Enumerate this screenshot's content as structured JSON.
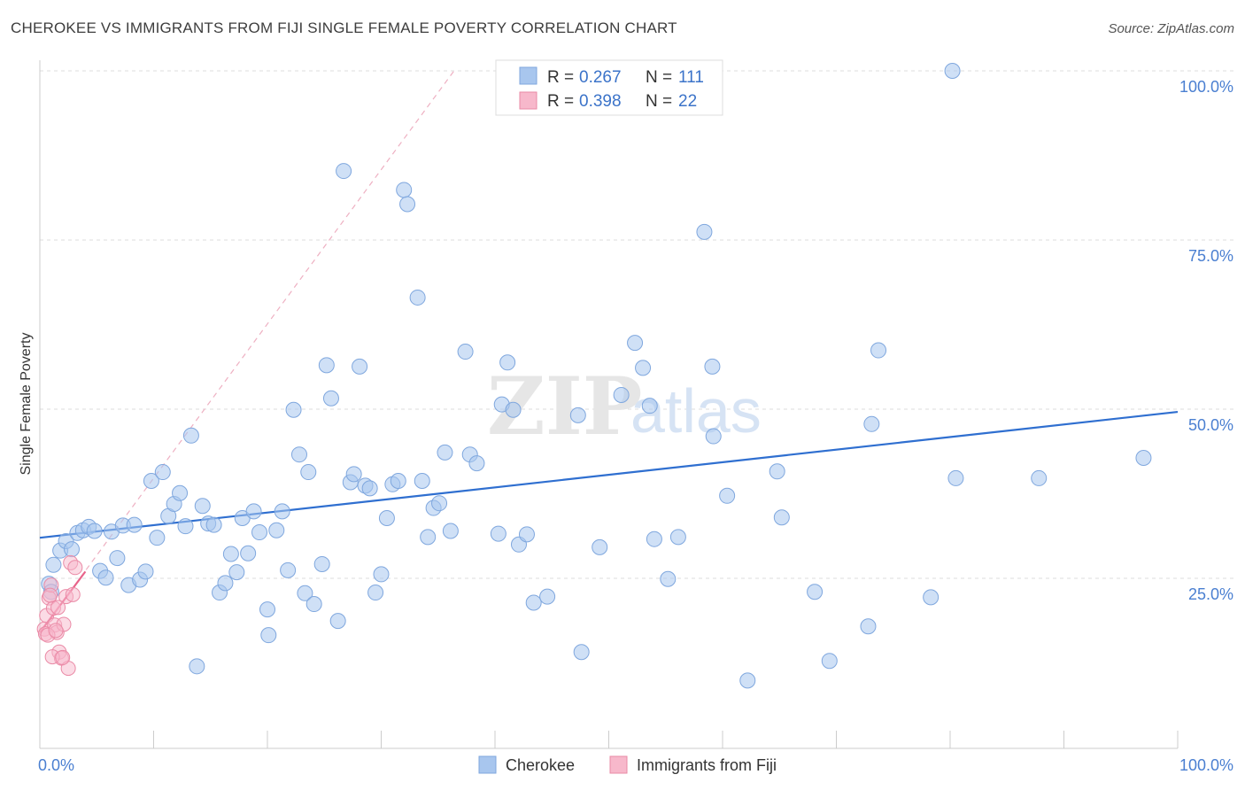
{
  "title": "CHEROKEE VS IMMIGRANTS FROM FIJI SINGLE FEMALE POVERTY CORRELATION CHART",
  "source": "Source: ZipAtlas.com",
  "watermark": {
    "left": "ZIP",
    "right": "atlas"
  },
  "legend": {
    "rows": [
      {
        "r_label": "R =",
        "r_value": "0.267",
        "n_label": "N =",
        "n_value": "111",
        "color": "#a8c6ee"
      },
      {
        "r_label": "R =",
        "r_value": "0.398",
        "n_label": "N =",
        "n_value": "22",
        "color": "#f7b8cb"
      }
    ]
  },
  "bottom_legend": [
    {
      "label": "Cherokee",
      "color": "#a8c6ee"
    },
    {
      "label": "Immigrants from Fiji",
      "color": "#f7b8cb"
    }
  ],
  "chart_data": {
    "type": "scatter",
    "title": "CHEROKEE VS IMMIGRANTS FROM FIJI SINGLE FEMALE POVERTY CORRELATION CHART",
    "xlabel": "",
    "ylabel": "Single Female Poverty",
    "xlim": [
      0,
      100
    ],
    "ylim": [
      0,
      100
    ],
    "x_tick_labels": [
      "0.0%",
      "100.0%"
    ],
    "y_ticks": [
      25,
      50,
      75,
      100
    ],
    "y_tick_labels": [
      "25.0%",
      "50.0%",
      "75.0%",
      "100.0%"
    ],
    "grid": true,
    "legend_position": "top-center",
    "series": [
      {
        "name": "Cherokee",
        "color": "#a8c6ee",
        "edge": "#7fa7de",
        "trend": {
          "x": [
            0,
            100
          ],
          "y": [
            31.0,
            49.6
          ],
          "color": "#2f6fd0"
        },
        "points": [
          [
            0.8,
            24.2
          ],
          [
            1.2,
            27.0
          ],
          [
            1.8,
            29.1
          ],
          [
            2.3,
            30.5
          ],
          [
            2.8,
            29.3
          ],
          [
            3.3,
            31.7
          ],
          [
            3.8,
            32.1
          ],
          [
            4.3,
            32.6
          ],
          [
            4.8,
            32.0
          ],
          [
            5.3,
            26.1
          ],
          [
            5.8,
            25.1
          ],
          [
            6.3,
            31.9
          ],
          [
            6.8,
            28.0
          ],
          [
            7.3,
            32.8
          ],
          [
            7.8,
            24.0
          ],
          [
            8.3,
            32.9
          ],
          [
            8.8,
            24.8
          ],
          [
            9.3,
            26.0
          ],
          [
            9.8,
            39.4
          ],
          [
            10.3,
            31.0
          ],
          [
            10.8,
            40.7
          ],
          [
            11.3,
            34.2
          ],
          [
            11.8,
            36.0
          ],
          [
            12.3,
            37.6
          ],
          [
            12.8,
            32.7
          ],
          [
            13.3,
            46.1
          ],
          [
            13.8,
            12.0
          ],
          [
            14.3,
            35.7
          ],
          [
            14.8,
            33.1
          ],
          [
            15.3,
            32.9
          ],
          [
            15.8,
            22.9
          ],
          [
            16.3,
            24.3
          ],
          [
            16.8,
            28.6
          ],
          [
            17.3,
            25.9
          ],
          [
            17.8,
            33.9
          ],
          [
            18.3,
            28.7
          ],
          [
            18.8,
            34.9
          ],
          [
            19.3,
            31.8
          ],
          [
            20.0,
            20.4
          ],
          [
            20.1,
            16.6
          ],
          [
            20.8,
            32.1
          ],
          [
            21.3,
            34.9
          ],
          [
            21.8,
            26.2
          ],
          [
            22.3,
            49.9
          ],
          [
            22.8,
            43.3
          ],
          [
            23.3,
            22.8
          ],
          [
            23.6,
            40.7
          ],
          [
            24.1,
            21.2
          ],
          [
            24.8,
            27.1
          ],
          [
            25.2,
            56.5
          ],
          [
            25.6,
            51.6
          ],
          [
            26.2,
            18.7
          ],
          [
            26.7,
            85.2
          ],
          [
            27.3,
            39.2
          ],
          [
            27.6,
            40.4
          ],
          [
            28.1,
            56.3
          ],
          [
            28.6,
            38.7
          ],
          [
            29.0,
            38.3
          ],
          [
            29.5,
            22.9
          ],
          [
            30.0,
            25.6
          ],
          [
            30.5,
            33.9
          ],
          [
            31.0,
            38.9
          ],
          [
            31.5,
            39.4
          ],
          [
            32.0,
            82.4
          ],
          [
            32.3,
            80.3
          ],
          [
            33.2,
            66.5
          ],
          [
            33.6,
            39.4
          ],
          [
            34.1,
            31.1
          ],
          [
            34.6,
            35.4
          ],
          [
            35.1,
            36.1
          ],
          [
            35.6,
            43.6
          ],
          [
            36.1,
            32.0
          ],
          [
            37.4,
            58.5
          ],
          [
            37.8,
            43.3
          ],
          [
            38.4,
            42.0
          ],
          [
            40.3,
            31.6
          ],
          [
            40.6,
            50.7
          ],
          [
            41.1,
            56.9
          ],
          [
            41.6,
            49.9
          ],
          [
            42.1,
            30.0
          ],
          [
            42.8,
            31.5
          ],
          [
            43.4,
            21.4
          ],
          [
            44.6,
            22.3
          ],
          [
            47.3,
            49.1
          ],
          [
            47.6,
            14.1
          ],
          [
            49.2,
            29.6
          ],
          [
            51.1,
            52.1
          ],
          [
            52.3,
            59.8
          ],
          [
            53.0,
            56.1
          ],
          [
            53.6,
            50.5
          ],
          [
            54.0,
            30.8
          ],
          [
            55.2,
            24.9
          ],
          [
            56.1,
            31.1
          ],
          [
            58.4,
            76.2
          ],
          [
            59.1,
            56.3
          ],
          [
            59.2,
            46.0
          ],
          [
            60.4,
            37.2
          ],
          [
            62.2,
            9.9
          ],
          [
            64.8,
            40.8
          ],
          [
            65.2,
            34.0
          ],
          [
            68.1,
            23.0
          ],
          [
            69.4,
            12.8
          ],
          [
            72.8,
            17.9
          ],
          [
            73.1,
            47.8
          ],
          [
            73.7,
            58.7
          ],
          [
            78.3,
            22.2
          ],
          [
            80.2,
            100.0
          ],
          [
            80.5,
            39.8
          ],
          [
            87.8,
            39.8
          ],
          [
            97.0,
            42.8
          ],
          [
            1.0,
            23.0
          ]
        ]
      },
      {
        "name": "Immigrants from Fiji",
        "color": "#f7b8cb",
        "edge": "#ea8aa6",
        "trend": {
          "x": [
            0,
            4.0
          ],
          "y": [
            17.0,
            26.0
          ],
          "color": "#e8638a"
        },
        "dashed_extension": {
          "x": [
            0,
            36.4
          ],
          "y": [
            17.0,
            100
          ],
          "color": "#eeb0c2"
        },
        "points": [
          [
            0.4,
            17.5
          ],
          [
            0.5,
            16.8
          ],
          [
            0.6,
            19.5
          ],
          [
            0.8,
            22.1
          ],
          [
            1.0,
            24.0
          ],
          [
            1.2,
            20.6
          ],
          [
            1.3,
            18.1
          ],
          [
            1.5,
            17.0
          ],
          [
            1.7,
            14.1
          ],
          [
            1.9,
            13.2
          ],
          [
            2.1,
            18.2
          ],
          [
            2.3,
            22.3
          ],
          [
            2.5,
            11.7
          ],
          [
            2.7,
            27.3
          ],
          [
            2.9,
            22.6
          ],
          [
            3.1,
            26.6
          ],
          [
            0.7,
            16.6
          ],
          [
            1.1,
            13.4
          ],
          [
            1.6,
            20.7
          ],
          [
            2.0,
            13.3
          ],
          [
            0.9,
            22.5
          ],
          [
            1.4,
            17.3
          ]
        ]
      }
    ]
  }
}
